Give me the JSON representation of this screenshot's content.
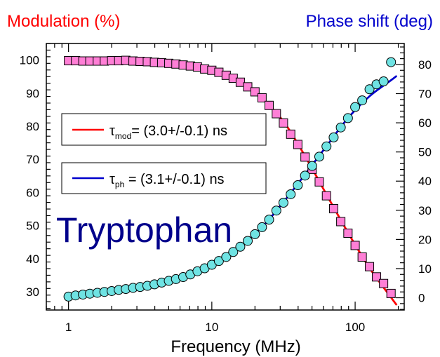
{
  "chart_data": {
    "type": "scatter",
    "xlabel": "Frequency (MHz)",
    "ylabel_left": "Modulation (%)",
    "ylabel_right": "Phase shift (deg)",
    "x_scale": "log",
    "xlim": [
      0.7,
      220
    ],
    "ylim_left": [
      24.5,
      105
    ],
    "ylim_right": [
      -4.2,
      87.2
    ],
    "x_ticks": [
      1,
      10,
      100
    ],
    "x_tick_labels": [
      "1",
      "10",
      "100"
    ],
    "y_left_ticks": [
      30,
      40,
      50,
      60,
      70,
      80,
      90,
      100
    ],
    "y_left_tick_labels": [
      "30",
      "40",
      "50",
      "60",
      "70",
      "80",
      "90",
      "100"
    ],
    "y_right_ticks": [
      0,
      10,
      20,
      30,
      40,
      50,
      60,
      70,
      80
    ],
    "y_right_tick_labels": [
      "0",
      "10",
      "20",
      "30",
      "40",
      "50",
      "60",
      "70",
      "80"
    ],
    "colors": {
      "modulation_title": "#ff0000",
      "phase_title": "#0000cc",
      "modulation_fit": "#ff0000",
      "phase_fit": "#0000cc",
      "modulation_marker": "#ff7fd6",
      "phase_marker": "#6fe3e3",
      "annotation": "#00008b"
    },
    "annotation": "Tryptophan",
    "legend": [
      {
        "prefix": "τ",
        "sub": "mod",
        "text": "= (3.0+/-0.1) ns",
        "color": "#ff0000"
      },
      {
        "prefix": "τ",
        "sub": "ph",
        "text": " = (3.1+/-0.1) ns",
        "color": "#0000cc"
      }
    ],
    "series": [
      {
        "axis": "left",
        "marker": "square",
        "x": [
          1.0,
          1.12,
          1.26,
          1.41,
          1.59,
          1.78,
          2.0,
          2.24,
          2.51,
          2.82,
          3.16,
          3.55,
          3.98,
          4.47,
          5.01,
          5.62,
          6.31,
          7.08,
          7.94,
          8.91,
          10.0,
          11.2,
          12.6,
          14.1,
          15.8,
          17.8,
          20.0,
          22.4,
          25.1,
          28.2,
          31.6,
          35.5,
          39.8,
          44.7,
          50.1,
          56.2,
          63.1,
          70.8,
          79.4,
          89.1,
          100,
          112,
          126,
          141,
          158,
          178
        ],
        "y": [
          99.8,
          99.8,
          99.7,
          99.7,
          99.7,
          99.7,
          99.8,
          99.8,
          99.9,
          99.7,
          99.6,
          99.5,
          99.3,
          99.2,
          99.0,
          98.8,
          98.5,
          98.2,
          97.9,
          97.3,
          96.9,
          96.3,
          95.4,
          94.5,
          93.3,
          91.9,
          90.4,
          88.6,
          86.3,
          83.8,
          81.0,
          77.6,
          74.5,
          70.7,
          67.0,
          63.2,
          59.0,
          55.1,
          51.2,
          47.7,
          44.0,
          40.5,
          37.6,
          34.5,
          32.5,
          29.5
        ]
      },
      {
        "axis": "right",
        "marker": "circle",
        "x": [
          1.0,
          1.12,
          1.26,
          1.41,
          1.59,
          1.78,
          2.0,
          2.24,
          2.51,
          2.82,
          3.16,
          3.55,
          3.98,
          4.47,
          5.01,
          5.62,
          6.31,
          7.08,
          7.94,
          8.91,
          10.0,
          11.2,
          12.6,
          14.1,
          15.8,
          17.8,
          20.0,
          22.4,
          25.1,
          28.2,
          31.6,
          35.5,
          39.8,
          44.7,
          50.1,
          56.2,
          63.1,
          70.8,
          79.4,
          89.1,
          100,
          112,
          126,
          141,
          158,
          178
        ],
        "y": [
          0.4,
          0.8,
          1.1,
          1.4,
          1.7,
          2.0,
          2.3,
          2.7,
          3.0,
          3.4,
          3.7,
          4.1,
          4.6,
          5.2,
          5.8,
          6.4,
          7.1,
          8.0,
          9.1,
          10.1,
          11.3,
          12.6,
          14.0,
          15.7,
          17.5,
          19.5,
          21.8,
          24.2,
          26.8,
          29.9,
          32.6,
          35.5,
          38.6,
          41.9,
          45.2,
          48.4,
          51.9,
          55.0,
          58.4,
          61.6,
          65.4,
          67.7,
          71.5,
          73.2,
          74.2,
          80.8
        ]
      },
      {
        "axis": "left",
        "marker": "line",
        "x": [
          1.0,
          1.41,
          2.0,
          2.82,
          3.98,
          5.62,
          7.94,
          11.2,
          15.8,
          22.4,
          31.6,
          44.7,
          63.1,
          89.1,
          126,
          178,
          195
        ],
        "y": [
          99.6,
          99.6,
          99.6,
          99.5,
          99.3,
          98.9,
          98.0,
          96.3,
          93.2,
          88.3,
          81.5,
          71.0,
          59.4,
          47.9,
          37.2,
          28.3,
          26.0
        ]
      },
      {
        "axis": "right",
        "marker": "line",
        "x": [
          1.0,
          1.41,
          2.0,
          2.82,
          3.98,
          5.62,
          7.94,
          11.2,
          15.8,
          22.4,
          31.6,
          44.7,
          63.1,
          89.1,
          126,
          178,
          195
        ],
        "y": [
          0.6,
          1.5,
          2.5,
          3.6,
          4.8,
          6.6,
          9.4,
          12.9,
          17.7,
          24.2,
          32.8,
          42.3,
          52.0,
          61.6,
          69.1,
          74.6,
          76.1
        ]
      }
    ]
  }
}
